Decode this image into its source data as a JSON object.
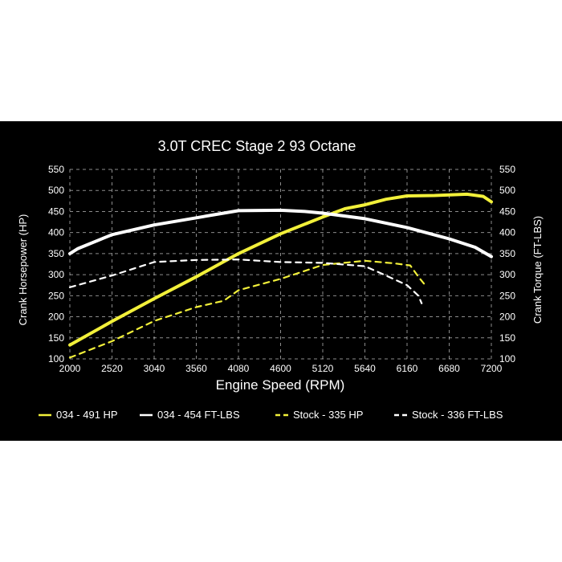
{
  "chart_data": {
    "type": "line",
    "title": "3.0T CREC Stage 2 93 Octane",
    "xlabel": "Engine Speed (RPM)",
    "ylabel_left": "Crank Horsepower (HP)",
    "ylabel_right": "Crank Torque (FT-LBS)",
    "xlim": [
      2000,
      7200
    ],
    "ylim": [
      100,
      550
    ],
    "x_ticks": [
      "2000",
      "2520",
      "3040",
      "3560",
      "4080",
      "4600",
      "5120",
      "5640",
      "6160",
      "6680",
      "7200"
    ],
    "y_ticks": [
      "100",
      "150",
      "200",
      "250",
      "300",
      "350",
      "400",
      "450",
      "500",
      "550"
    ],
    "grid": true,
    "legend_position": "bottom",
    "series": [
      {
        "name": "034 - 491 HP",
        "axis": "left",
        "color": "#f2f03a",
        "style": "solid",
        "x": [
          2000,
          2520,
          3040,
          3560,
          4080,
          4600,
          5120,
          5400,
          5640,
          5900,
          6160,
          6500,
          6900,
          7100,
          7200
        ],
        "y": [
          133,
          189,
          243,
          295,
          350,
          397,
          437,
          457,
          466,
          479,
          487,
          488,
          491,
          486,
          473
        ]
      },
      {
        "name": "034 - 454 FT-LBS",
        "axis": "right",
        "color": "#ffffff",
        "style": "solid",
        "x": [
          2000,
          2100,
          2520,
          3040,
          3560,
          3800,
          4080,
          4600,
          4900,
          5120,
          5640,
          6160,
          6680,
          7000,
          7200
        ],
        "y": [
          350,
          362,
          395,
          418,
          435,
          443,
          452,
          453,
          450,
          446,
          433,
          412,
          385,
          365,
          343
        ]
      },
      {
        "name": "Stock - 335 HP",
        "axis": "left",
        "color": "#f2f03a",
        "style": "dashed",
        "x": [
          2000,
          2520,
          3040,
          3560,
          3900,
          4080,
          4600,
          5120,
          5640,
          6000,
          6200,
          6300,
          6380
        ],
        "y": [
          103,
          142,
          190,
          223,
          238,
          263,
          290,
          323,
          333,
          327,
          322,
          295,
          276
        ]
      },
      {
        "name": "Stock - 336 FT-LBS",
        "axis": "right",
        "color": "#ffffff",
        "style": "dashed",
        "x": [
          2000,
          2520,
          3040,
          3560,
          4080,
          4600,
          5120,
          5640,
          5900,
          6160,
          6300,
          6340
        ],
        "y": [
          270,
          298,
          330,
          335,
          336,
          330,
          328,
          320,
          298,
          275,
          250,
          232
        ]
      }
    ]
  }
}
